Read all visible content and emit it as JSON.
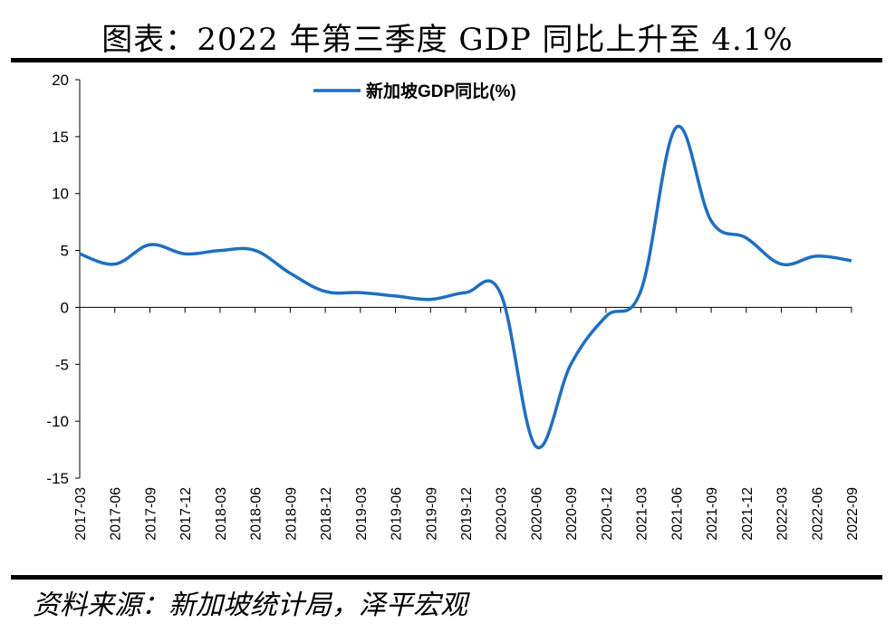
{
  "figure": {
    "title": "图表：2022 年第三季度 GDP 同比上升至 4.1%",
    "source": "资料来源：新加坡统计局，泽平宏观"
  },
  "colors": {
    "series": "#1F6FBF",
    "axis": "#000000"
  },
  "chart_data": {
    "type": "line",
    "title": "",
    "xlabel": "",
    "ylabel": "",
    "ylim": [
      -15,
      20
    ],
    "yticks": [
      -15,
      -10,
      -5,
      0,
      5,
      10,
      15,
      20
    ],
    "legend_position": "top-center",
    "grid": false,
    "categories": [
      "2017-03",
      "2017-06",
      "2017-09",
      "2017-12",
      "2018-03",
      "2018-06",
      "2018-09",
      "2018-12",
      "2019-03",
      "2019-06",
      "2019-09",
      "2019-12",
      "2020-03",
      "2020-06",
      "2020-09",
      "2020-12",
      "2021-03",
      "2021-06",
      "2021-09",
      "2021-12",
      "2022-03",
      "2022-06",
      "2022-09"
    ],
    "series": [
      {
        "name": "新加坡GDP同比(%)",
        "values": [
          4.7,
          3.8,
          5.5,
          4.7,
          5.0,
          5.0,
          3.0,
          1.4,
          1.3,
          1.0,
          0.7,
          1.3,
          1.2,
          -12.2,
          -5.0,
          -0.8,
          1.5,
          15.8,
          7.6,
          6.1,
          3.8,
          4.5,
          4.1
        ]
      }
    ]
  }
}
